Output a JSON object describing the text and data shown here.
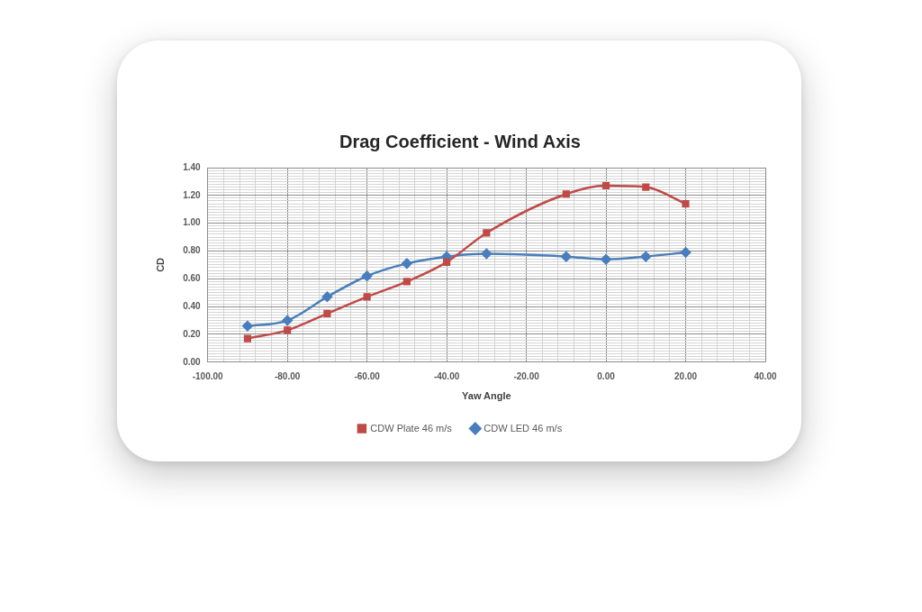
{
  "chart_data": {
    "type": "line",
    "title": "Drag Coefficient - Wind Axis",
    "xlabel": "Yaw Angle",
    "ylabel": "CD",
    "x": [
      -90,
      -80,
      -70,
      -60,
      -50,
      -40,
      -30,
      -10,
      0,
      10,
      20
    ],
    "series": [
      {
        "name": "CDW Plate 46 m/s",
        "color": "#be4b48",
        "marker": "square",
        "values": [
          0.17,
          0.23,
          0.35,
          0.47,
          0.58,
          0.72,
          0.93,
          1.21,
          1.27,
          1.26,
          1.14
        ]
      },
      {
        "name": "CDW LED 46 m/s",
        "color": "#4a7ebb",
        "marker": "diamond",
        "values": [
          0.26,
          0.3,
          0.47,
          0.62,
          0.71,
          0.76,
          0.78,
          0.76,
          0.74,
          0.76,
          0.79
        ]
      }
    ],
    "xlim": [
      -100,
      40
    ],
    "xticks": [
      {
        "value": -100,
        "label": "-100.00"
      },
      {
        "value": -96,
        "label": null
      },
      {
        "value": -92,
        "label": null
      },
      {
        "value": -88,
        "label": null
      },
      {
        "value": -84,
        "label": null
      },
      {
        "value": -80,
        "label": "-80.00"
      },
      {
        "value": -76,
        "label": null
      },
      {
        "value": -72,
        "label": null
      },
      {
        "value": -68,
        "label": null
      },
      {
        "value": -64,
        "label": null
      },
      {
        "value": -60,
        "label": "-60.00"
      },
      {
        "value": -56,
        "label": null
      },
      {
        "value": -52,
        "label": null
      },
      {
        "value": -48,
        "label": null
      },
      {
        "value": -44,
        "label": null
      },
      {
        "value": -40,
        "label": "-40.00"
      },
      {
        "value": -36,
        "label": null
      },
      {
        "value": -32,
        "label": null
      },
      {
        "value": -28,
        "label": null
      },
      {
        "value": -24,
        "label": null
      },
      {
        "value": -20,
        "label": "-20.00"
      },
      {
        "value": -16,
        "label": null
      },
      {
        "value": -12,
        "label": null
      },
      {
        "value": -8,
        "label": null
      },
      {
        "value": -4,
        "label": null
      },
      {
        "value": 0,
        "label": "0.00"
      },
      {
        "value": 4,
        "label": null
      },
      {
        "value": 8,
        "label": null
      },
      {
        "value": 12,
        "label": null
      },
      {
        "value": 16,
        "label": null
      },
      {
        "value": 20,
        "label": "20.00"
      },
      {
        "value": 24,
        "label": null
      },
      {
        "value": 28,
        "label": null
      },
      {
        "value": 32,
        "label": null
      },
      {
        "value": 36,
        "label": null
      },
      {
        "value": 40,
        "label": "40.00"
      }
    ],
    "ylim": [
      0,
      1.4
    ],
    "yticks": [
      {
        "value": 0,
        "label": "0.00"
      },
      {
        "value": 0.02,
        "label": null
      },
      {
        "value": 0.04,
        "label": null
      },
      {
        "value": 0.06,
        "label": null
      },
      {
        "value": 0.08,
        "label": null
      },
      {
        "value": 0.1,
        "label": null
      },
      {
        "value": 0.12,
        "label": null
      },
      {
        "value": 0.14,
        "label": null
      },
      {
        "value": 0.16,
        "label": null
      },
      {
        "value": 0.18,
        "label": null
      },
      {
        "value": 0.2,
        "label": "0.20"
      },
      {
        "value": 0.22,
        "label": null
      },
      {
        "value": 0.24,
        "label": null
      },
      {
        "value": 0.26,
        "label": null
      },
      {
        "value": 0.28,
        "label": null
      },
      {
        "value": 0.3,
        "label": null
      },
      {
        "value": 0.32,
        "label": null
      },
      {
        "value": 0.34,
        "label": null
      },
      {
        "value": 0.36,
        "label": null
      },
      {
        "value": 0.38,
        "label": null
      },
      {
        "value": 0.4,
        "label": "0.40"
      },
      {
        "value": 0.42,
        "label": null
      },
      {
        "value": 0.44,
        "label": null
      },
      {
        "value": 0.46,
        "label": null
      },
      {
        "value": 0.48,
        "label": null
      },
      {
        "value": 0.5,
        "label": null
      },
      {
        "value": 0.52,
        "label": null
      },
      {
        "value": 0.54,
        "label": null
      },
      {
        "value": 0.56,
        "label": null
      },
      {
        "value": 0.58,
        "label": null
      },
      {
        "value": 0.6,
        "label": "0.60"
      },
      {
        "value": 0.62,
        "label": null
      },
      {
        "value": 0.64,
        "label": null
      },
      {
        "value": 0.66,
        "label": null
      },
      {
        "value": 0.68,
        "label": null
      },
      {
        "value": 0.7,
        "label": null
      },
      {
        "value": 0.72,
        "label": null
      },
      {
        "value": 0.74,
        "label": null
      },
      {
        "value": 0.76,
        "label": null
      },
      {
        "value": 0.78,
        "label": null
      },
      {
        "value": 0.8,
        "label": "0.80"
      },
      {
        "value": 0.82,
        "label": null
      },
      {
        "value": 0.84,
        "label": null
      },
      {
        "value": 0.86,
        "label": null
      },
      {
        "value": 0.88,
        "label": null
      },
      {
        "value": 0.9,
        "label": null
      },
      {
        "value": 0.92,
        "label": null
      },
      {
        "value": 0.94,
        "label": null
      },
      {
        "value": 0.96,
        "label": null
      },
      {
        "value": 0.98,
        "label": null
      },
      {
        "value": 1.0,
        "label": "1.00"
      },
      {
        "value": 1.02,
        "label": null
      },
      {
        "value": 1.04,
        "label": null
      },
      {
        "value": 1.06,
        "label": null
      },
      {
        "value": 1.08,
        "label": null
      },
      {
        "value": 1.1,
        "label": null
      },
      {
        "value": 1.12,
        "label": null
      },
      {
        "value": 1.14,
        "label": null
      },
      {
        "value": 1.16,
        "label": null
      },
      {
        "value": 1.18,
        "label": null
      },
      {
        "value": 1.2,
        "label": "1.20"
      },
      {
        "value": 1.22,
        "label": null
      },
      {
        "value": 1.24,
        "label": null
      },
      {
        "value": 1.26,
        "label": null
      },
      {
        "value": 1.28,
        "label": null
      },
      {
        "value": 1.3,
        "label": null
      },
      {
        "value": 1.32,
        "label": null
      },
      {
        "value": 1.34,
        "label": null
      },
      {
        "value": 1.36,
        "label": null
      },
      {
        "value": 1.38,
        "label": null
      },
      {
        "value": 1.4,
        "label": "1.40"
      }
    ],
    "grid": true,
    "legend": "bottom",
    "line_style": "solid"
  }
}
